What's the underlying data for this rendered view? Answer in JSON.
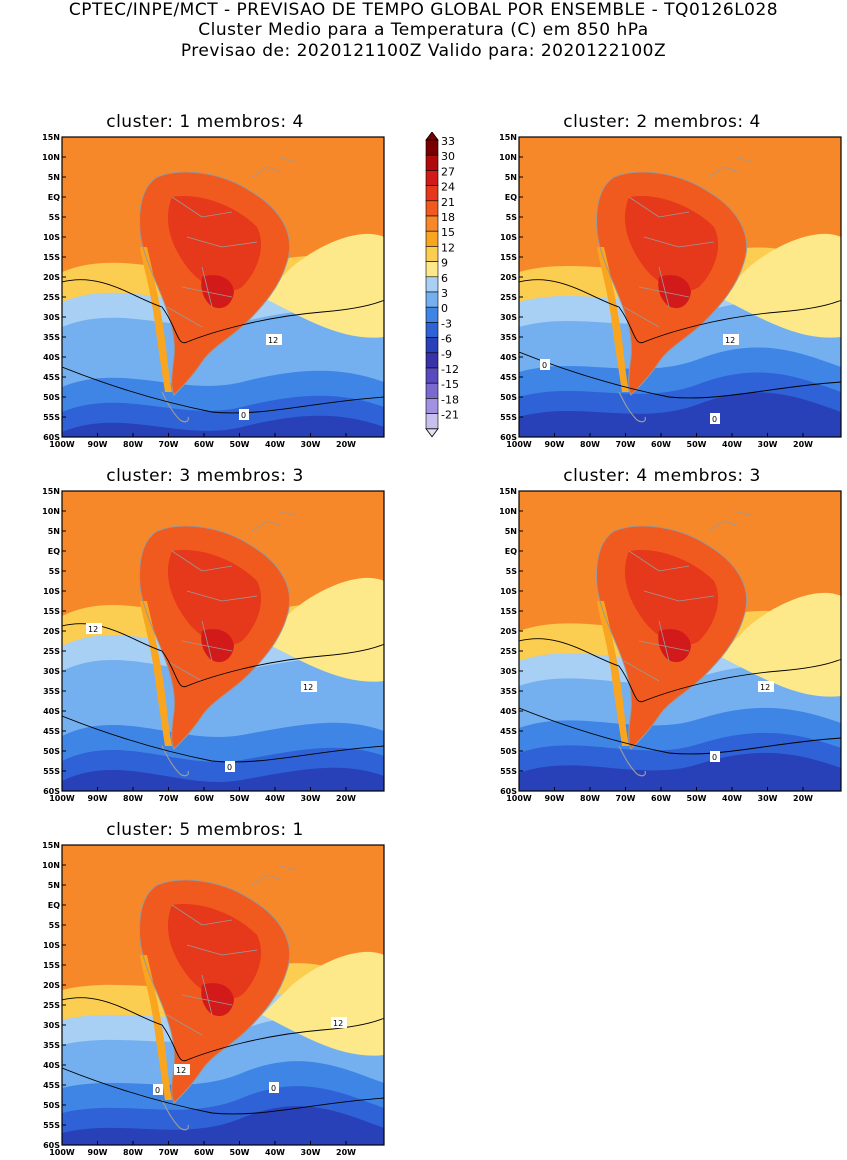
{
  "header": {
    "line1": "CPTEC/INPE/MCT - PREVISAO DE TEMPO GLOBAL POR ENSEMBLE - TQ0126L028",
    "line2": "Cluster Medio para a Temperatura (C) em 850 hPa",
    "line3": "Previsao de: 2020121100Z   Valido para: 2020122100Z"
  },
  "lat_labels": [
    "15N",
    "10N",
    "5N",
    "EQ",
    "5S",
    "10S",
    "15S",
    "20S",
    "25S",
    "30S",
    "35S",
    "40S",
    "45S",
    "50S",
    "55S",
    "60S"
  ],
  "lon_labels": [
    "100W",
    "90W",
    "80W",
    "70W",
    "60W",
    "50W",
    "40W",
    "30W",
    "20W"
  ],
  "colorbar": {
    "levels": [
      "33",
      "30",
      "27",
      "24",
      "21",
      "18",
      "15",
      "12",
      "9",
      "6",
      "3",
      "0",
      "-3",
      "-6",
      "-9",
      "-12",
      "-15",
      "-18",
      "-21"
    ],
    "colors": [
      "#7a0000",
      "#b00a0a",
      "#d21a1a",
      "#e6381a",
      "#f05a1e",
      "#f7882a",
      "#f9a520",
      "#fbcd50",
      "#fde98a",
      "#a8d0f5",
      "#74b0f0",
      "#3f85e6",
      "#2e62d6",
      "#2840b8",
      "#3a32a8",
      "#5a4abf",
      "#7a6ad0",
      "#a092e0",
      "#c9c0ee"
    ]
  },
  "clusters": [
    {
      "title": "cluster:  1   membros:  4",
      "contour_labels": [
        "12",
        "0"
      ]
    },
    {
      "title": "cluster:  2   membros:  4",
      "contour_labels": [
        "12",
        "0",
        "0"
      ]
    },
    {
      "title": "cluster:  3   membros:  3",
      "contour_labels": [
        "12",
        "12",
        "0"
      ]
    },
    {
      "title": "cluster:  4   membros:  3",
      "contour_labels": [
        "12",
        "0"
      ]
    },
    {
      "title": "cluster:  5   membros:  1",
      "contour_labels": [
        "12",
        "12",
        "0",
        "0"
      ]
    }
  ]
}
